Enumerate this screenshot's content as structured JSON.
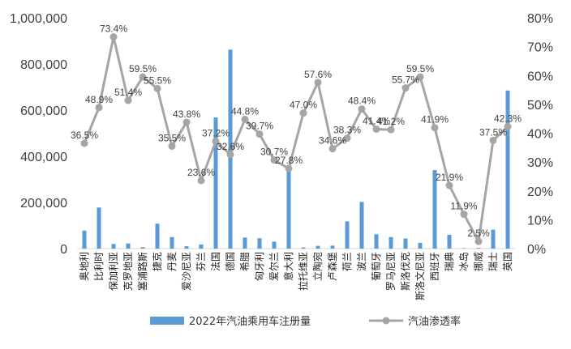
{
  "chart_data": {
    "type": "bar",
    "categories": [
      "奥地利",
      "比利时",
      "保加利亚",
      "克罗地亚",
      "塞浦路斯",
      "捷克",
      "丹麦",
      "爱沙尼亚",
      "芬兰",
      "法国",
      "德国",
      "希腊",
      "匈牙利",
      "爱尔兰",
      "意大利",
      "拉托维亚",
      "立陶宛",
      "卢森堡",
      "荷兰",
      "波兰",
      "葡萄牙",
      "罗马尼亚",
      "斯洛伐克",
      "斯洛文尼亚",
      "西班牙",
      "瑞典",
      "冰岛",
      "挪威",
      "瑞士",
      "英国"
    ],
    "series": [
      {
        "name": "2022年汽油乘用车注册量",
        "axis": "left",
        "mark": "bar",
        "color": "#5b9bd5",
        "values": [
          78000,
          178000,
          20000,
          22000,
          6000,
          108000,
          50000,
          10000,
          18000,
          568000,
          862000,
          48000,
          45000,
          30000,
          338000,
          5000,
          12000,
          13000,
          118000,
          202000,
          62000,
          50000,
          44000,
          25000,
          340000,
          60000,
          2000,
          3000,
          82000,
          685000
        ]
      },
      {
        "name": "汽油渗透率",
        "axis": "right",
        "mark": "line",
        "color": "#a5a5a5",
        "values": [
          36.5,
          48.9,
          73.4,
          51.4,
          59.5,
          55.5,
          35.5,
          43.8,
          23.6,
          37.2,
          32.6,
          44.8,
          39.7,
          30.7,
          27.8,
          47.0,
          57.6,
          34.6,
          38.3,
          48.4,
          41.4,
          41.2,
          55.7,
          59.5,
          41.9,
          21.9,
          11.9,
          2.5,
          37.5,
          42.3
        ],
        "labels": [
          "36.5%",
          "48.9%",
          "73.4%",
          "51.4%",
          "59.5%",
          "55.5%",
          "35.5%",
          "43.8%",
          "23.6%",
          "37.2%",
          "32.6%",
          "44.8%",
          "39.7%",
          "30.7%",
          "27.8%",
          "47.0%",
          "57.6%",
          "34.6%",
          "38.3%",
          "48.4%",
          "41.4%",
          "41.2%",
          "55.7%",
          "59.5%",
          "41.9%",
          "21.9%",
          "11.9%",
          "2.5%",
          "37.5%",
          "42.3%"
        ]
      }
    ],
    "y_left": {
      "ylim": [
        0,
        1000000
      ],
      "tick_labels": [
        "0",
        "200,000",
        "400,000",
        "600,000",
        "800,000",
        "1,000,000"
      ]
    },
    "y_right": {
      "ylim": [
        0,
        80
      ],
      "tick_labels": [
        "0%",
        "10%",
        "20%",
        "30%",
        "40%",
        "50%",
        "60%",
        "70%",
        "80%"
      ]
    },
    "grid": false,
    "legend": "bottom"
  }
}
